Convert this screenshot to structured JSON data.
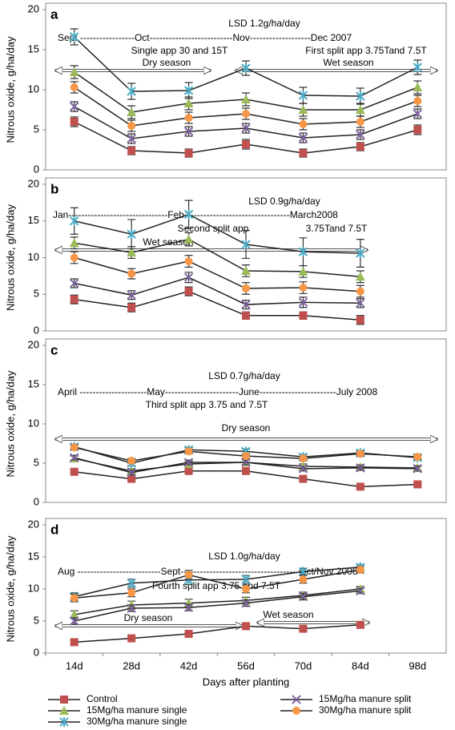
{
  "chart_data": [
    {
      "type": "line",
      "label": "a",
      "ylabel": "Nitrous oxide, g/ha/day",
      "ylim": [
        0,
        20
      ],
      "yticks": [
        0,
        5,
        10,
        15,
        20
      ],
      "line_color": "#222",
      "annotations": [
        "LSD 1.2g/ha/day",
        "Sept -----------------Oct--------------------------Nov-------------------Dec 2007",
        "Single app 30 and 15T",
        "First split app 3.75Tand 7.5T",
        "Dry        season",
        "Wet    season"
      ],
      "series": [
        {
          "color": "#c0504d",
          "marker": "square",
          "values": [
            6.0,
            2.4,
            2.1,
            3.2,
            2.1,
            2.9,
            5.0
          ],
          "errors": [
            0.6,
            0.5,
            0.5,
            0.6,
            0.5,
            0.5,
            0.6
          ]
        },
        {
          "color": "#9bbb59",
          "marker": "triangle",
          "values": [
            12.2,
            7.2,
            8.3,
            8.8,
            7.5,
            7.5,
            10.3
          ],
          "errors": [
            0.8,
            0.8,
            0.8,
            0.8,
            0.8,
            0.8,
            0.8
          ]
        },
        {
          "color": "#4bacc6",
          "marker": "star",
          "values": [
            16.6,
            9.8,
            9.9,
            12.7,
            9.3,
            9.2,
            12.8
          ],
          "errors": [
            1.0,
            1.0,
            1.0,
            0.9,
            1.0,
            1.0,
            0.9
          ]
        },
        {
          "color": "#8064a2",
          "marker": "x",
          "values": [
            7.9,
            3.9,
            4.8,
            5.2,
            4.0,
            4.4,
            7.0
          ],
          "errors": [
            0.6,
            0.6,
            0.6,
            0.6,
            0.6,
            0.6,
            0.6
          ]
        },
        {
          "color": "#f79646",
          "marker": "circle",
          "values": [
            10.3,
            5.5,
            6.5,
            7.0,
            5.7,
            6.0,
            8.6
          ],
          "errors": [
            0.7,
            0.7,
            0.7,
            0.7,
            0.7,
            0.7,
            0.7
          ]
        }
      ]
    },
    {
      "type": "line",
      "label": "b",
      "ylabel": "Nitrous oxide, g/ha/day",
      "ylim": [
        0,
        20
      ],
      "yticks": [
        0,
        5,
        10,
        15,
        20
      ],
      "line_color": "#222",
      "annotations": [
        "LSD 0.9g/ha/day",
        "Jan-------------------------------Feb---------------------------------March2008",
        "Second split app",
        "3.75Tand 7.5T",
        "Wet        season"
      ],
      "series": [
        {
          "color": "#c0504d",
          "marker": "square",
          "values": [
            4.3,
            3.2,
            5.4,
            2.1,
            2.1,
            1.5,
            null
          ],
          "errors": [
            0.6,
            0.6,
            0.6,
            0.5,
            0.5,
            0.6,
            null
          ]
        },
        {
          "color": "#9bbb59",
          "marker": "triangle",
          "values": [
            12.0,
            10.7,
            12.5,
            8.2,
            8.1,
            7.4,
            null
          ],
          "errors": [
            0.8,
            0.8,
            0.9,
            0.8,
            0.8,
            0.8,
            null
          ]
        },
        {
          "color": "#4bacc6",
          "marker": "star",
          "values": [
            15.0,
            13.2,
            15.9,
            11.8,
            10.8,
            10.6,
            null
          ],
          "errors": [
            1.8,
            2.0,
            1.9,
            1.9,
            1.9,
            1.9,
            null
          ]
        },
        {
          "color": "#8064a2",
          "marker": "x",
          "values": [
            6.5,
            4.9,
            7.3,
            3.6,
            3.9,
            3.8,
            null
          ],
          "errors": [
            0.6,
            0.6,
            0.7,
            0.6,
            0.7,
            0.6,
            null
          ]
        },
        {
          "color": "#f79646",
          "marker": "circle",
          "values": [
            10.0,
            7.8,
            9.5,
            5.8,
            5.9,
            5.4,
            null
          ],
          "errors": [
            0.8,
            0.7,
            0.8,
            0.8,
            0.8,
            0.8,
            null
          ]
        }
      ]
    },
    {
      "type": "line",
      "label": "c",
      "ylabel": "Nitrous oxide, g/ha/day",
      "ylim": [
        0,
        20
      ],
      "yticks": [
        0,
        5,
        10,
        15,
        20
      ],
      "line_color": "#222",
      "annotations": [
        "LSD 0.7g/ha/day",
        "April ---------------------May-----------------------June------------------------July 2008",
        "Third split app 3.75 and 7.5T",
        "Dry season"
      ],
      "series": [
        {
          "color": "#c0504d",
          "marker": "square",
          "values": [
            3.9,
            3.0,
            4.0,
            4.0,
            3.0,
            2.0,
            2.3
          ],
          "errors": [
            0.2,
            0.2,
            0.2,
            0.2,
            0.2,
            0.2,
            0.2
          ]
        },
        {
          "color": "#9bbb59",
          "marker": "triangle",
          "values": [
            5.6,
            4.0,
            4.9,
            5.1,
            4.6,
            4.5,
            4.4
          ],
          "errors": [
            0.3,
            0.3,
            0.3,
            0.3,
            0.3,
            0.3,
            0.3
          ]
        },
        {
          "color": "#4bacc6",
          "marker": "star",
          "values": [
            7.1,
            5.0,
            6.7,
            6.5,
            5.8,
            6.3,
            5.7
          ],
          "errors": [
            0.3,
            0.3,
            0.3,
            0.3,
            0.3,
            0.3,
            0.3
          ]
        },
        {
          "color": "#8064a2",
          "marker": "x",
          "values": [
            5.7,
            3.8,
            5.1,
            5.1,
            4.3,
            4.4,
            4.3
          ],
          "errors": [
            0.3,
            0.3,
            0.3,
            0.3,
            0.3,
            0.3,
            0.3
          ]
        },
        {
          "color": "#f79646",
          "marker": "circle",
          "values": [
            7.0,
            5.3,
            6.5,
            5.9,
            5.6,
            6.2,
            5.8
          ],
          "errors": [
            0.3,
            0.3,
            0.3,
            0.3,
            0.3,
            0.3,
            0.3
          ]
        }
      ]
    },
    {
      "type": "line",
      "label": "d",
      "ylabel": "Nitrous oxide, g/ha/day",
      "xlabel": "Days after planting",
      "ylim": [
        0,
        20
      ],
      "yticks": [
        0,
        5,
        10,
        15,
        20
      ],
      "line_color": "#222",
      "categories": [
        "14d",
        "28d",
        "42d",
        "56d",
        "70d",
        "84d",
        "98d"
      ],
      "annotations": [
        "LSD 1.0g/ha/day",
        "Aug --------------------------Sept-------------------------------------Oct/Nov 2008",
        "Fourth split app 3.75 and 7.5T",
        "Dry        season",
        "Wet  season"
      ],
      "series": [
        {
          "name": "Control",
          "color": "#c0504d",
          "marker": "square",
          "values": [
            1.7,
            2.3,
            3.0,
            4.2,
            3.8,
            4.4,
            null
          ],
          "errors": [
            0.2,
            0.2,
            0.2,
            0.3,
            0.3,
            0.3,
            null
          ]
        },
        {
          "name": "15Mg/ha manure single",
          "color": "#9bbb59",
          "marker": "triangle",
          "values": [
            6.0,
            7.5,
            7.8,
            8.2,
            9.0,
            10.0,
            null
          ],
          "errors": [
            0.6,
            0.6,
            0.6,
            0.5,
            0.5,
            0.4,
            null
          ]
        },
        {
          "name": "30Mg/ha manure single",
          "color": "#4bacc6",
          "marker": "star",
          "values": [
            8.8,
            10.9,
            11.4,
            11.5,
            12.7,
            13.4,
            null
          ],
          "errors": [
            0.6,
            0.6,
            0.7,
            0.6,
            0.5,
            0.4,
            null
          ]
        },
        {
          "name": "15Mg/ha manure split",
          "color": "#8064a2",
          "marker": "x",
          "values": [
            5.0,
            7.0,
            7.1,
            7.8,
            8.8,
            9.7,
            null
          ],
          "errors": [
            0.5,
            0.5,
            0.5,
            0.5,
            0.5,
            0.4,
            null
          ]
        },
        {
          "name": "30Mg/ha manure split",
          "color": "#f79646",
          "marker": "circle",
          "values": [
            8.6,
            9.4,
            12.2,
            10.0,
            11.5,
            13.0,
            null
          ],
          "errors": [
            0.6,
            0.6,
            0.7,
            0.6,
            0.6,
            0.5,
            null
          ]
        }
      ]
    }
  ]
}
